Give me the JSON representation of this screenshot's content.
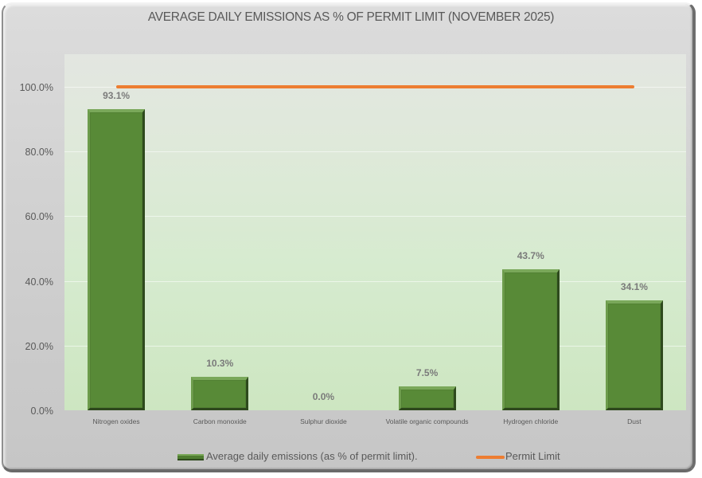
{
  "chart_data": {
    "type": "bar",
    "title": "AVERAGE DAILY EMISSIONS AS % OF PERMIT LIMIT (NOVEMBER 2025)",
    "xlabel": "",
    "ylabel": "",
    "ylim": [
      0,
      100
    ],
    "y_ticks": [
      "0.0%",
      "20.0%",
      "40.0%",
      "60.0%",
      "80.0%",
      "100.0%"
    ],
    "grid": true,
    "legend_position": "bottom",
    "categories": [
      "Nitrogen oxides",
      "Carbon monoxide",
      "Sulphur dioxide",
      "Volatile organic compounds",
      "Hydrogen chloride",
      "Dust"
    ],
    "series": [
      {
        "name": "Average daily emissions (as % of permit limit).",
        "type": "bar",
        "color": "#588a37",
        "values": [
          93.1,
          10.3,
          0.0,
          7.5,
          43.7,
          34.1
        ],
        "labels": [
          "93.1%",
          "10.3%",
          "0.0%",
          "7.5%",
          "43.7%",
          "34.1%"
        ]
      },
      {
        "name": "Permit Limit",
        "type": "line",
        "color": "#ed7d31",
        "values": [
          100,
          100,
          100,
          100,
          100,
          100
        ]
      }
    ]
  },
  "legend": {
    "bar_label": "Average daily emissions (as % of permit limit).",
    "line_label": "Permit Limit"
  }
}
